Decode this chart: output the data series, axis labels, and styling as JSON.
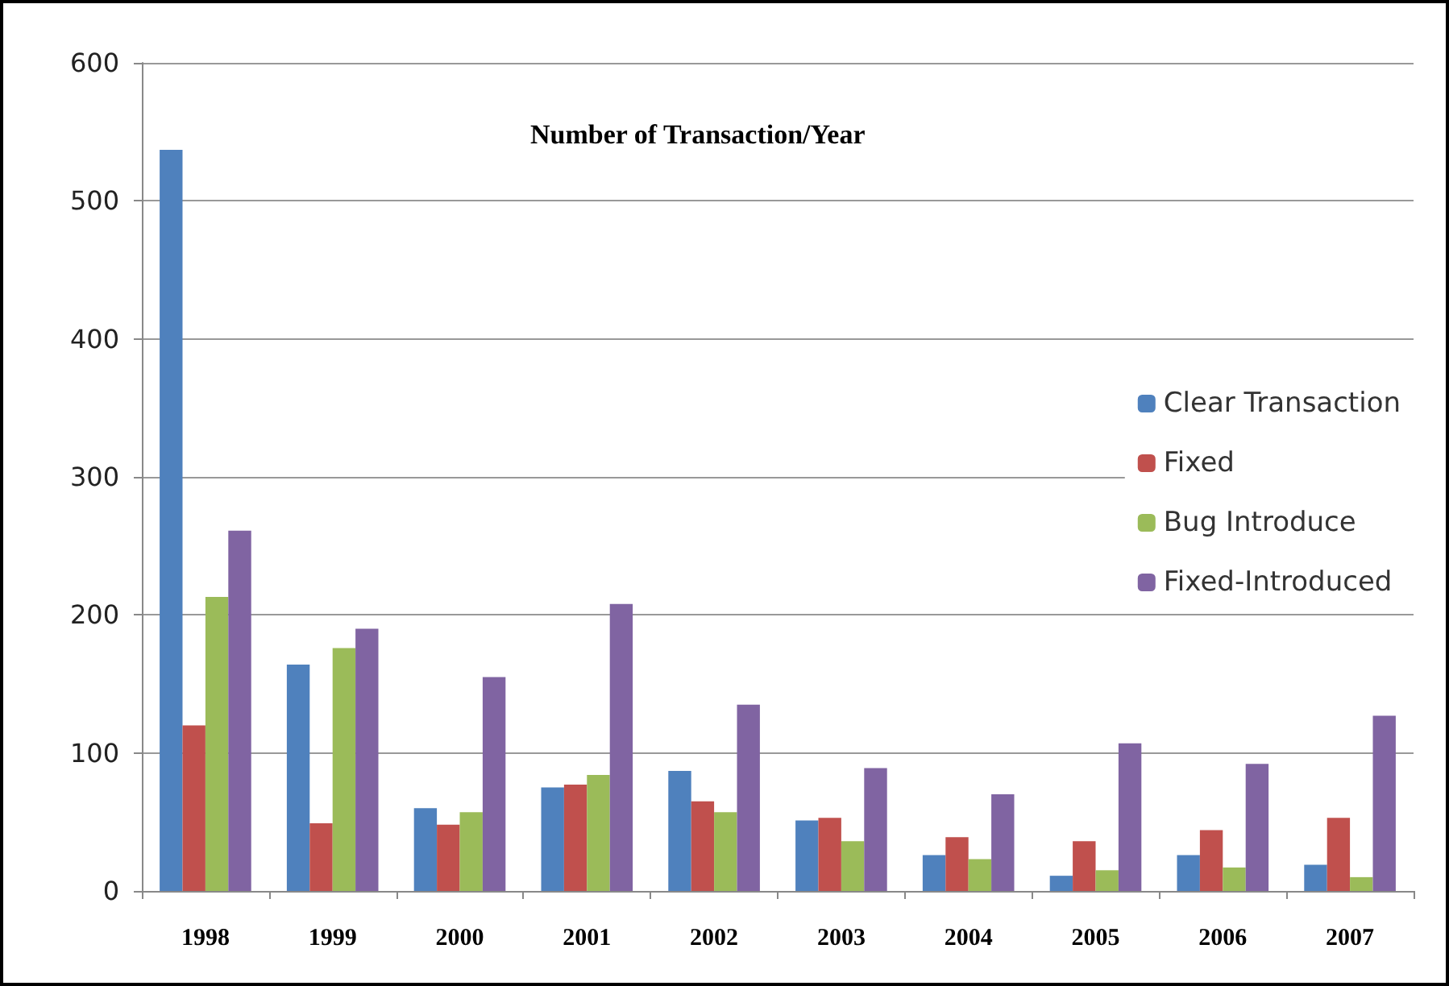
{
  "chart_data": {
    "type": "bar",
    "title": "Number of Transaction/Year",
    "categories": [
      "1998",
      "1999",
      "2000",
      "2001",
      "2002",
      "2003",
      "2004",
      "2005",
      "2006",
      "2007"
    ],
    "series": [
      {
        "name": "Clear Transaction",
        "color": "#4f81bd",
        "values": [
          537,
          164,
          60,
          75,
          87,
          51,
          26,
          11,
          26,
          19
        ]
      },
      {
        "name": "Fixed",
        "color": "#c0504d",
        "values": [
          120,
          49,
          48,
          77,
          65,
          53,
          39,
          36,
          44,
          53
        ]
      },
      {
        "name": "Bug Introduce",
        "color": "#9bbb59",
        "values": [
          213,
          176,
          57,
          84,
          57,
          36,
          23,
          15,
          17,
          10
        ]
      },
      {
        "name": "Fixed-Introduced",
        "color": "#8064a2",
        "values": [
          261,
          190,
          155,
          208,
          135,
          89,
          70,
          107,
          92,
          127
        ]
      }
    ],
    "ylim": [
      0,
      600
    ],
    "yticks": [
      0,
      100,
      200,
      300,
      400,
      500,
      600
    ],
    "grid": "y",
    "legend": "right"
  }
}
